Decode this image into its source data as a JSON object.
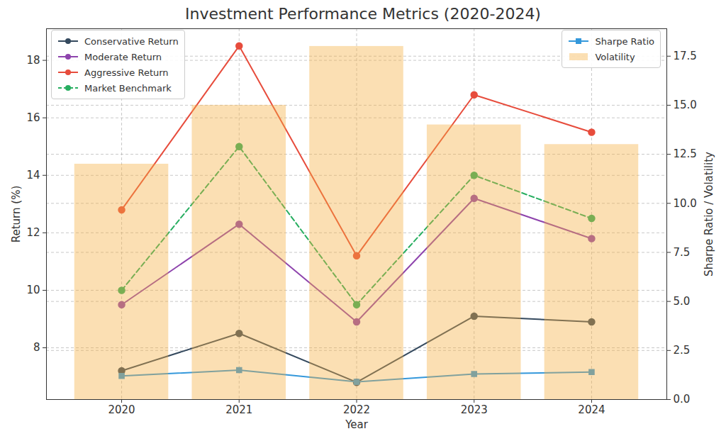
{
  "chart_data": {
    "type": "line",
    "title": "Investment Performance Metrics (2020-2024)",
    "x_label": "Year",
    "y_label": "Return (%)",
    "y2_label": "Sharpe Ratio / Volatility",
    "categories": [
      "2020",
      "2021",
      "2022",
      "2023",
      "2024"
    ],
    "ylim": [
      6.2,
      19.1
    ],
    "yticks": [
      8,
      10,
      12,
      14,
      16,
      18
    ],
    "y2lim": [
      0,
      18.9
    ],
    "y2ticks": [
      {
        "value": 0,
        "label": "0.0"
      },
      2.5,
      {
        "value": 5,
        "label": "5.0"
      },
      7.5,
      {
        "value": 10,
        "label": "10.0"
      },
      12.5,
      {
        "value": 15,
        "label": "15.0"
      },
      17.5
    ],
    "grid": true,
    "legend": "upper left",
    "series": [
      {
        "name": "Conservative Return",
        "type": "line",
        "color": "#34495e",
        "marker": "circle",
        "line_style": "solid",
        "values": [
          7.2,
          8.5,
          6.8,
          9.1,
          8.9
        ]
      },
      {
        "name": "Moderate Return",
        "type": "line",
        "color": "#8e44ad",
        "marker": "circle",
        "line_style": "solid",
        "values": [
          9.5,
          12.3,
          8.9,
          13.2,
          11.8
        ]
      },
      {
        "name": "Aggressive Return",
        "type": "line",
        "color": "#e74c3c",
        "marker": "circle",
        "line_style": "solid",
        "values": [
          12.8,
          18.5,
          11.2,
          16.8,
          15.5
        ]
      },
      {
        "name": "Market Benchmark",
        "type": "line",
        "color": "#27ae60",
        "marker": "circle",
        "line_style": "dashed",
        "values": [
          10.0,
          15.0,
          9.5,
          14.0,
          12.5
        ]
      },
      {
        "name": "Sharpe Ratio",
        "type": "line",
        "axis": "y2",
        "color": "#3498db",
        "marker": "square",
        "line_style": "solid",
        "values": [
          1.2,
          1.5,
          0.9,
          1.3,
          1.4
        ]
      },
      {
        "name": "Volatility",
        "type": "bar",
        "axis": "y2",
        "color": "#f5b041",
        "values": [
          12,
          15,
          18,
          14,
          13
        ]
      }
    ]
  }
}
